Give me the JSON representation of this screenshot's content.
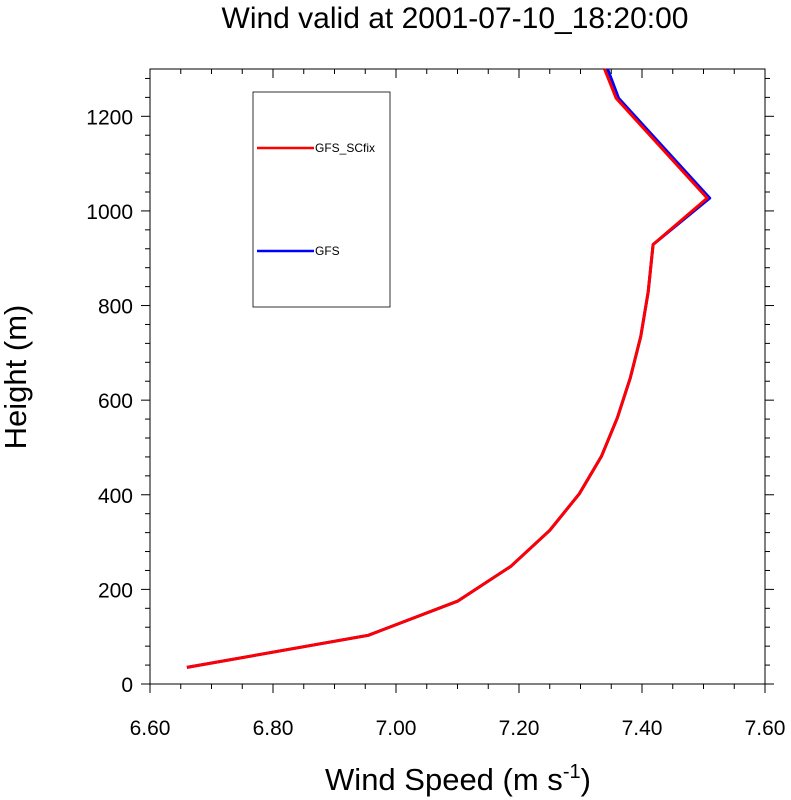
{
  "chart_data": {
    "type": "line",
    "title": "Wind valid at 2001-07-10_18:20:00",
    "xlabel": "Wind Speed (m s",
    "xlabel_superscript": "-1",
    "xlabel_suffix": ")",
    "ylabel": "Height (m)",
    "xlim": [
      6.6,
      7.6
    ],
    "ylim": [
      0,
      1300
    ],
    "xticks": [
      6.6,
      6.8,
      7.0,
      7.2,
      7.4,
      7.6
    ],
    "xtick_labels": [
      "6.60",
      "6.80",
      "7.00",
      "7.20",
      "7.40",
      "7.60"
    ],
    "yticks": [
      0,
      200,
      400,
      600,
      800,
      1000,
      1200
    ],
    "ytick_labels": [
      "0",
      "200",
      "400",
      "600",
      "800",
      "1000",
      "1200"
    ],
    "legend_placement": "upper-left",
    "series": [
      {
        "name": "GFS",
        "color": "#0000ff",
        "x": [
          6.66,
          6.955,
          7.1,
          7.187,
          7.25,
          7.298,
          7.334,
          7.36,
          7.381,
          7.398,
          7.41,
          7.418,
          7.51,
          7.362,
          7.344
        ],
        "y": [
          35,
          103,
          175,
          249,
          325,
          402,
          481,
          563,
          647,
          735,
          829,
          929,
          1027,
          1238,
          1300
        ]
      },
      {
        "name": "GFS_SCfix",
        "color": "#ff0000",
        "x": [
          6.66,
          6.955,
          7.1,
          7.187,
          7.25,
          7.298,
          7.334,
          7.36,
          7.381,
          7.398,
          7.41,
          7.418,
          7.506,
          7.358,
          7.339
        ],
        "y": [
          35,
          103,
          175,
          249,
          325,
          402,
          481,
          563,
          647,
          735,
          829,
          929,
          1027,
          1238,
          1300
        ]
      }
    ]
  }
}
